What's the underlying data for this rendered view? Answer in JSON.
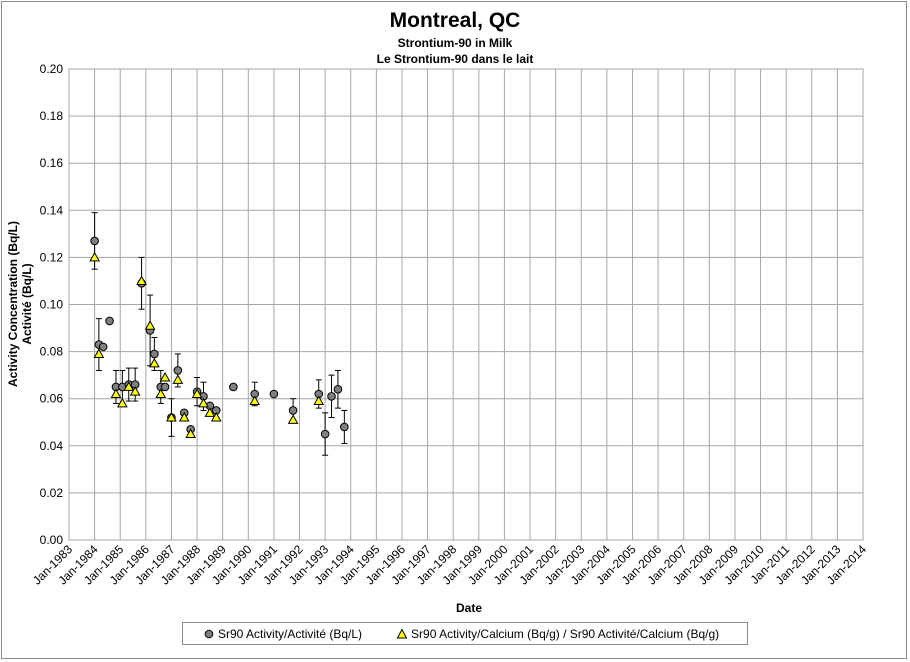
{
  "chart_data": {
    "type": "scatter",
    "title": "Montreal, QC",
    "subtitle_lines": [
      "Strontium-90 in Milk",
      "Le Strontium-90 dans le lait"
    ],
    "xlabel": "Date",
    "ylabel_lines": [
      "Activity Concentration (Bq/L)",
      "Activité (Bq/L)"
    ],
    "x_ticks": [
      "Jan-1983",
      "Jan-1984",
      "Jan-1985",
      "Jan-1986",
      "Jan-1987",
      "Jan-1988",
      "Jan-1989",
      "Jan-1990",
      "Jan-1991",
      "Jan-1992",
      "Jan-1993",
      "Jan-1994",
      "Jan-1995",
      "Jan-1996",
      "Jan-1997",
      "Jan-1998",
      "Jan-1999",
      "Jan-2000",
      "Jan-2001",
      "Jan-2002",
      "Jan-2003",
      "Jan-2004",
      "Jan-2005",
      "Jan-2006",
      "Jan-2007",
      "Jan-2008",
      "Jan-2009",
      "Jan-2010",
      "Jan-2011",
      "Jan-2012",
      "Jan-2013",
      "Jan-2014"
    ],
    "y_ticks": [
      "0.00",
      "0.02",
      "0.04",
      "0.06",
      "0.08",
      "0.10",
      "0.12",
      "0.14",
      "0.16",
      "0.18",
      "0.20"
    ],
    "xlim": [
      "1983-01",
      "2014-01"
    ],
    "ylim": [
      0,
      0.2
    ],
    "grid": true,
    "legend_position": "bottom",
    "series": [
      {
        "name": "Sr90 Activity/Activité (Bq/L)",
        "marker": "circle",
        "color": "#7f7f7f",
        "points": [
          {
            "x": "1984-01",
            "y": 0.127,
            "err": 0.012
          },
          {
            "x": "1984-03",
            "y": 0.083,
            "err": 0.011
          },
          {
            "x": "1984-05",
            "y": 0.082
          },
          {
            "x": "1984-08",
            "y": 0.093
          },
          {
            "x": "1984-11",
            "y": 0.065,
            "err": 0.007
          },
          {
            "x": "1985-02",
            "y": 0.065,
            "err": 0.007
          },
          {
            "x": "1985-05",
            "y": 0.066,
            "err": 0.007
          },
          {
            "x": "1985-08",
            "y": 0.066,
            "err": 0.007
          },
          {
            "x": "1985-11",
            "y": 0.109,
            "err": 0.011
          },
          {
            "x": "1986-03",
            "y": 0.089,
            "err": 0.015
          },
          {
            "x": "1986-05",
            "y": 0.079,
            "err": 0.007
          },
          {
            "x": "1986-08",
            "y": 0.065,
            "err": 0.007
          },
          {
            "x": "1986-10",
            "y": 0.065
          },
          {
            "x": "1987-01",
            "y": 0.052,
            "err": 0.008
          },
          {
            "x": "1987-04",
            "y": 0.072,
            "err": 0.007
          },
          {
            "x": "1987-07",
            "y": 0.054
          },
          {
            "x": "1987-10",
            "y": 0.047
          },
          {
            "x": "1988-01",
            "y": 0.063,
            "err": 0.006
          },
          {
            "x": "1988-04",
            "y": 0.061,
            "err": 0.006
          },
          {
            "x": "1988-07",
            "y": 0.057
          },
          {
            "x": "1988-10",
            "y": 0.055
          },
          {
            "x": "1989-06",
            "y": 0.065
          },
          {
            "x": "1990-04",
            "y": 0.062,
            "err": 0.005
          },
          {
            "x": "1991-01",
            "y": 0.062
          },
          {
            "x": "1991-10",
            "y": 0.055,
            "err": 0.005
          },
          {
            "x": "1992-10",
            "y": 0.062,
            "err": 0.006
          },
          {
            "x": "1993-01",
            "y": 0.045,
            "err": 0.009
          },
          {
            "x": "1993-04",
            "y": 0.061,
            "err": 0.009
          },
          {
            "x": "1993-07",
            "y": 0.064,
            "err": 0.008
          },
          {
            "x": "1993-10",
            "y": 0.048,
            "err": 0.007
          }
        ]
      },
      {
        "name": "Sr90 Activity/Calcium (Bq/g) / Sr90 Activité/Calcium (Bq/g)",
        "marker": "triangle",
        "color": "#ffff00",
        "points": [
          {
            "x": "1984-01",
            "y": 0.12
          },
          {
            "x": "1984-03",
            "y": 0.079
          },
          {
            "x": "1984-11",
            "y": 0.062
          },
          {
            "x": "1985-02",
            "y": 0.058
          },
          {
            "x": "1985-05",
            "y": 0.065
          },
          {
            "x": "1985-08",
            "y": 0.063
          },
          {
            "x": "1985-11",
            "y": 0.11
          },
          {
            "x": "1986-03",
            "y": 0.091
          },
          {
            "x": "1986-05",
            "y": 0.075
          },
          {
            "x": "1986-08",
            "y": 0.062
          },
          {
            "x": "1986-10",
            "y": 0.069
          },
          {
            "x": "1987-01",
            "y": 0.052
          },
          {
            "x": "1987-04",
            "y": 0.068
          },
          {
            "x": "1987-07",
            "y": 0.052
          },
          {
            "x": "1987-10",
            "y": 0.045
          },
          {
            "x": "1988-01",
            "y": 0.062
          },
          {
            "x": "1988-04",
            "y": 0.058
          },
          {
            "x": "1988-07",
            "y": 0.054
          },
          {
            "x": "1988-10",
            "y": 0.052
          },
          {
            "x": "1990-04",
            "y": 0.059
          },
          {
            "x": "1991-10",
            "y": 0.051
          },
          {
            "x": "1992-10",
            "y": 0.059
          }
        ]
      }
    ]
  }
}
